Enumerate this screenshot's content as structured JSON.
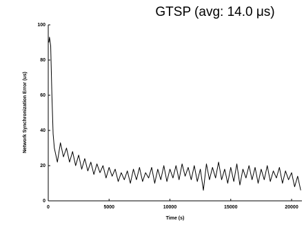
{
  "chart_data": {
    "type": "line",
    "title": "GTSP (avg: 14.0 μs)",
    "y_label": "Network Synchronization Error (us)",
    "x_label": "Time (s)",
    "xlim": [
      0,
      20850
    ],
    "ylim": [
      0,
      100
    ],
    "xticks": [
      0,
      5000,
      10000,
      15000,
      20000
    ],
    "yticks": [
      0,
      20,
      40,
      60,
      80,
      100
    ],
    "series": [
      {
        "color": "#000000",
        "x": [
          50,
          100,
          200,
          300,
          400,
          500,
          750,
          1000,
          1250,
          1500,
          1750,
          2000,
          2250,
          2500,
          2750,
          3000,
          3250,
          3500,
          3750,
          4000,
          4250,
          4500,
          4750,
          5000,
          5250,
          5500,
          5750,
          6000,
          6250,
          6500,
          6750,
          7000,
          7250,
          7500,
          7750,
          8000,
          8250,
          8500,
          8750,
          9000,
          9250,
          9500,
          9750,
          10000,
          10250,
          10500,
          10750,
          11000,
          11250,
          11500,
          11750,
          12000,
          12250,
          12500,
          12750,
          13000,
          13250,
          13500,
          13750,
          14000,
          14250,
          14500,
          14750,
          15000,
          15250,
          15500,
          15750,
          16000,
          16250,
          16500,
          16750,
          17000,
          17250,
          17500,
          17750,
          18000,
          18250,
          18500,
          18750,
          19000,
          19250,
          19500,
          19750,
          20000,
          20250,
          20500,
          20750
        ],
        "values": [
          90,
          93,
          88,
          60,
          38,
          30,
          22,
          33,
          25,
          30,
          22,
          28,
          20,
          26,
          18,
          24,
          17,
          22,
          15,
          21,
          16,
          20,
          13,
          19,
          14,
          18,
          11,
          16,
          12,
          17,
          10,
          18,
          12,
          19,
          11,
          16,
          13,
          19,
          10,
          18,
          12,
          20,
          11,
          18,
          13,
          20,
          12,
          21,
          14,
          19,
          12,
          20,
          11,
          18,
          6,
          21,
          12,
          19,
          13,
          22,
          12,
          18,
          10,
          19,
          11,
          21,
          9,
          18,
          13,
          20,
          12,
          19,
          10,
          18,
          12,
          20,
          11,
          17,
          13,
          19,
          10,
          17,
          12,
          16,
          8,
          14,
          6
        ]
      }
    ]
  }
}
